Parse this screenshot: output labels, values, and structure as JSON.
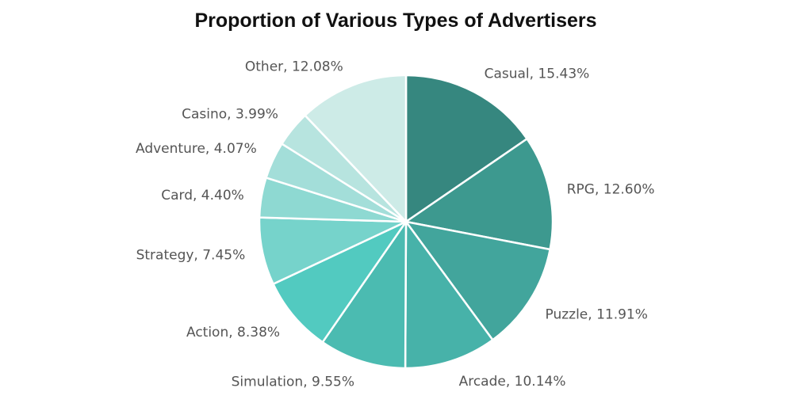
{
  "chart_data": {
    "type": "pie",
    "title": "Proportion of Various Types of Advertisers",
    "slices": [
      {
        "name": "Casual",
        "value": 15.43,
        "label": "Casual, 15.43%",
        "color": "#36877f"
      },
      {
        "name": "RPG",
        "value": 12.6,
        "label": "RPG, 12.60%",
        "color": "#3d998f"
      },
      {
        "name": "Puzzle",
        "value": 11.91,
        "label": "Puzzle, 11.91%",
        "color": "#42a59c"
      },
      {
        "name": "Arcade",
        "value": 10.14,
        "label": "Arcade, 10.14%",
        "color": "#47b2a9"
      },
      {
        "name": "Simulation",
        "value": 9.55,
        "label": "Simulation, 9.55%",
        "color": "#4bbbb1"
      },
      {
        "name": "Action",
        "value": 8.38,
        "label": "Action, 8.38%",
        "color": "#52cac0"
      },
      {
        "name": "Strategy",
        "value": 7.45,
        "label": "Strategy, 7.45%",
        "color": "#76d3cb"
      },
      {
        "name": "Card",
        "value": 4.4,
        "label": "Card, 4.40%",
        "color": "#8ed9d2"
      },
      {
        "name": "Adventure",
        "value": 4.07,
        "label": "Adventure, 4.07%",
        "color": "#a3ded9"
      },
      {
        "name": "Casino",
        "value": 3.99,
        "label": "Casino, 3.99%",
        "color": "#b7e4df"
      },
      {
        "name": "Other",
        "value": 12.08,
        "label": "Other, 12.08%",
        "color": "#cdebe7"
      }
    ],
    "start_angle": "12 o'clock",
    "direction": "clockwise",
    "legend": "none",
    "data_labels": "outside"
  }
}
